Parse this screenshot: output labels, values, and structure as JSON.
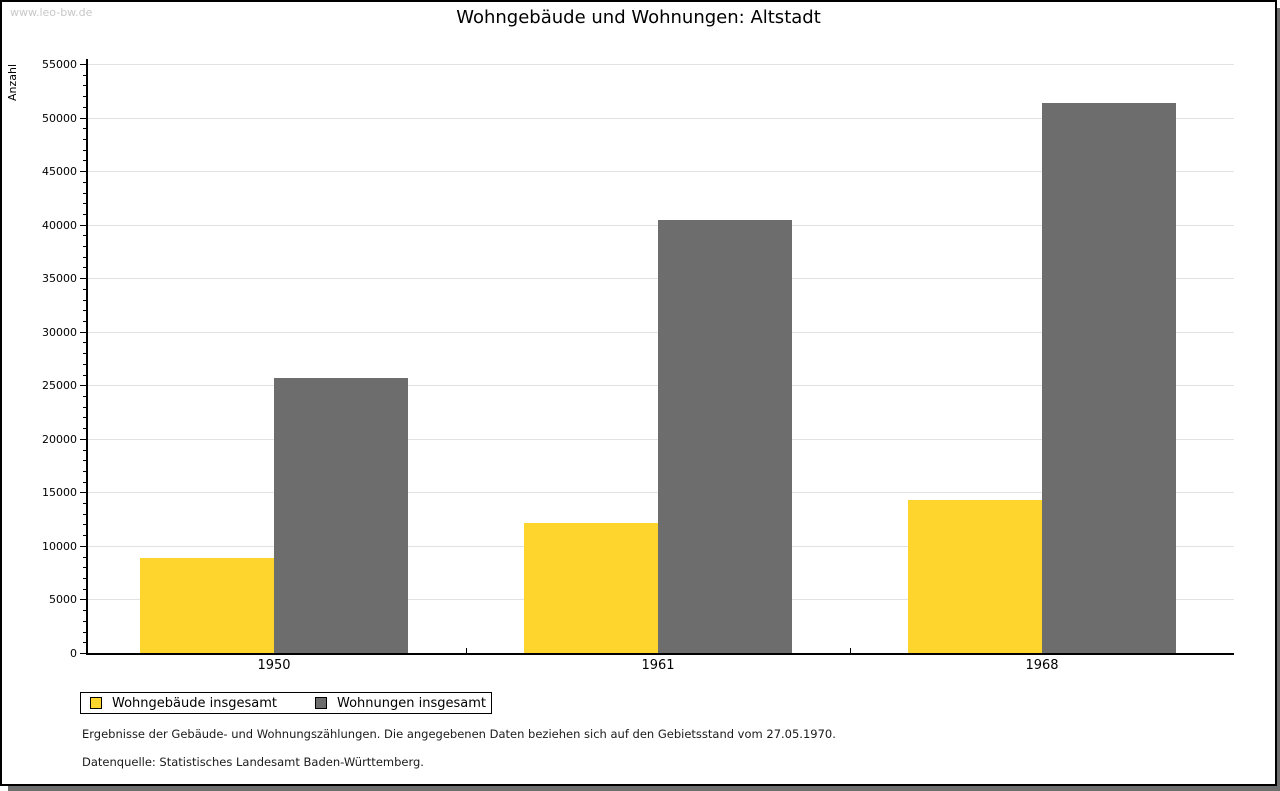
{
  "watermark": "www.leo-bw.de",
  "chart_data": {
    "type": "bar",
    "title": "Wohngebäude und Wohnungen: Altstadt",
    "ylabel": "Anzahl",
    "xlabel": "",
    "categories": [
      "1950",
      "1961",
      "1968"
    ],
    "series": [
      {
        "name": "Wohngebäude insgesamt",
        "color": "#fdd52d",
        "values": [
          8900,
          12100,
          14300
        ]
      },
      {
        "name": "Wohnungen insgesamt",
        "color": "#6d6d6d",
        "values": [
          25700,
          40400,
          51400
        ]
      }
    ],
    "ylim": [
      0,
      55000
    ],
    "y_major_step": 5000,
    "y_minor_step": 1000,
    "grid": "horizontal-major",
    "legend_position": "bottom-left"
  },
  "footnotes": {
    "line1": "Ergebnisse der Gebäude- und Wohnungszählungen. Die angegebenen Daten beziehen sich auf den Gebietsstand vom 27.05.1970.",
    "line2": "Datenquelle: Statistisches Landesamt Baden-Württemberg."
  },
  "colors": {
    "bar_yellow": "#fdd52d",
    "bar_gray": "#6d6d6d",
    "gridline": "#e2e2e2",
    "watermark": "#c8c8c8",
    "frame_shadow": "#6e6e6e",
    "axis": "#000000"
  }
}
